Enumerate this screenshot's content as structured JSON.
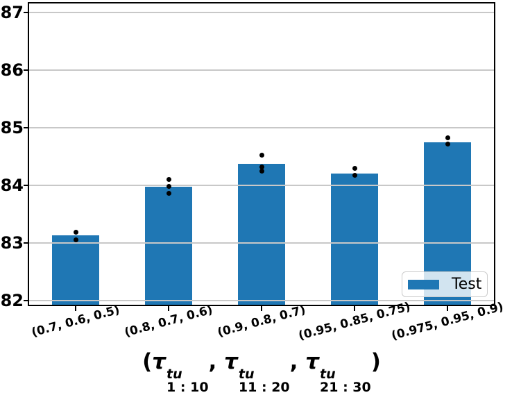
{
  "chart_data": {
    "type": "bar",
    "title": "",
    "categories": [
      "(0.7, 0.6, 0.5)",
      "(0.8, 0.7, 0.6)",
      "(0.9, 0.8, 0.7)",
      "(0.95, 0.85, 0.75)",
      "(0.975, 0.95, 0.9)"
    ],
    "series": [
      {
        "name": "Test",
        "values": [
          83.13,
          83.97,
          84.37,
          84.21,
          84.75
        ]
      }
    ],
    "scatter_points": {
      "by_category": [
        [
          83.19,
          83.06
        ],
        [
          84.1,
          83.98,
          83.86
        ],
        [
          84.52,
          84.32,
          84.25
        ],
        [
          84.29,
          84.17
        ],
        [
          84.83,
          84.72
        ]
      ]
    },
    "xlabel": {
      "open": "(",
      "separator": ", ",
      "close": ")",
      "groups": [
        {
          "base": "τ",
          "sup": "tu",
          "sub": "1 : 10"
        },
        {
          "base": "τ",
          "sup": "tu",
          "sub": "11 : 20"
        },
        {
          "base": "τ",
          "sup": "tu",
          "sub": "21 : 30"
        }
      ]
    },
    "ylabel": "",
    "ylim": [
      82,
      87.15
    ],
    "yticks": [
      82,
      83,
      84,
      85,
      86,
      87
    ],
    "grid": true,
    "legend": {
      "label": "Test",
      "position": "lower-right"
    },
    "colors": {
      "bar": "#1f77b4",
      "dot": "#000000",
      "grid": "#c8c8c8",
      "spine": "#000000",
      "text": "#000000",
      "legend_border": "#cccccc"
    }
  }
}
